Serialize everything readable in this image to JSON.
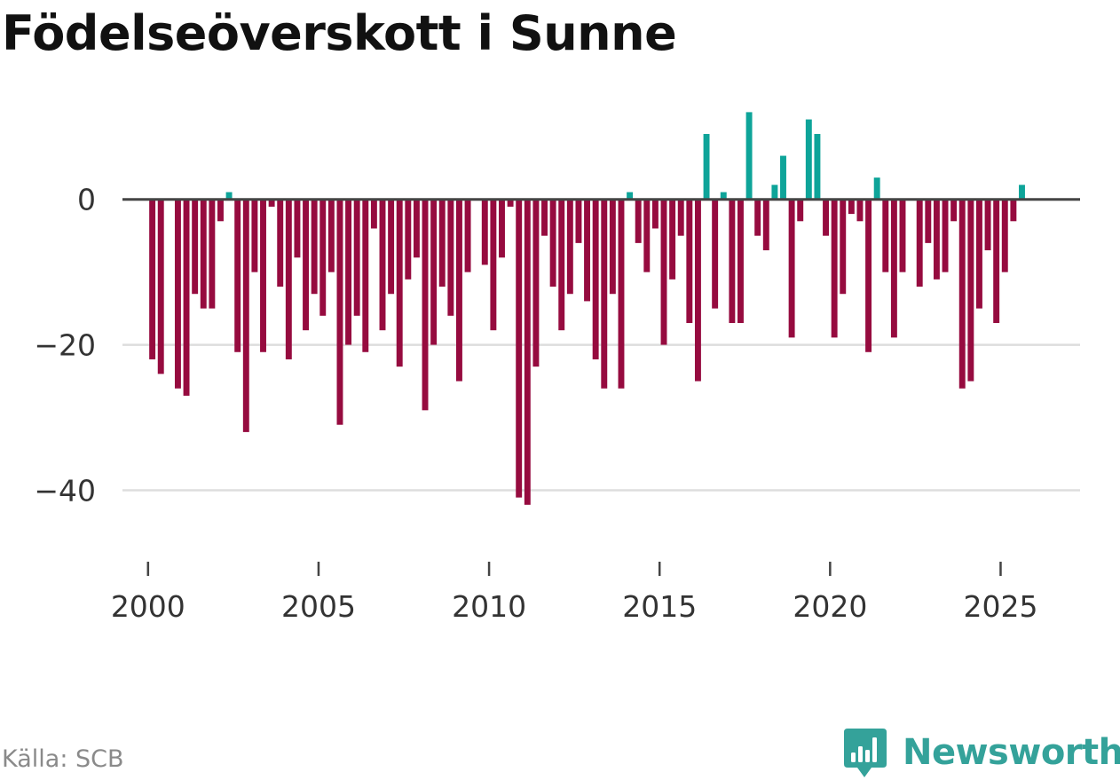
{
  "title": "Födelseöverskott i Sunne",
  "source": "Källa: SCB",
  "brand": {
    "name": "Newsworthy",
    "icon": "newsworthy-logo-icon",
    "color": "#34a29a"
  },
  "colors": {
    "positive": "#0ea499",
    "negative": "#960b3f",
    "zero_line": "#444444",
    "grid": "#dddddd",
    "axis_text": "#333333"
  },
  "chart_data": {
    "type": "bar",
    "title": "Födelseöverskott i Sunne",
    "xlabel": "",
    "ylabel": "",
    "xlim": [
      1999.25,
      2027.33
    ],
    "ylim": [
      -48,
      14
    ],
    "grid": true,
    "legend": "none",
    "x_ticks": [
      2000,
      2005,
      2010,
      2015,
      2020,
      2025
    ],
    "x_tick_labels": [
      "2000",
      "2005",
      "2010",
      "2015",
      "2020",
      "2025"
    ],
    "y_ticks": [
      0,
      -20,
      -40
    ],
    "y_tick_labels": [
      "0",
      "−20",
      "−40"
    ],
    "start_year": 2000,
    "start_quarter": 1,
    "frequency": "quarterly",
    "values": [
      -22,
      -24,
      0,
      -26,
      -27,
      -13,
      -15,
      -15,
      -3,
      1,
      -21,
      -32,
      -10,
      -21,
      -1,
      -12,
      -22,
      -8,
      -18,
      -13,
      -16,
      -10,
      -31,
      -20,
      -16,
      -21,
      -4,
      -18,
      -13,
      -23,
      -11,
      -8,
      -29,
      -20,
      -12,
      -16,
      -25,
      -10,
      0,
      -9,
      -18,
      -8,
      -1,
      -41,
      -42,
      -23,
      -5,
      -12,
      -18,
      -13,
      -6,
      -14,
      -22,
      -26,
      -13,
      -26,
      1,
      -6,
      -10,
      -4,
      -20,
      -11,
      -5,
      -17,
      -25,
      9,
      -15,
      1,
      -17,
      -17,
      12,
      -5,
      -7,
      2,
      6,
      -19,
      -3,
      11,
      9,
      -5,
      -19,
      -13,
      -2,
      -3,
      -21,
      3,
      -10,
      -19,
      -10,
      0,
      -12,
      -6,
      -11,
      -10,
      -3,
      -26,
      -25,
      -15,
      -7,
      -17,
      -10,
      -3,
      2
    ]
  }
}
